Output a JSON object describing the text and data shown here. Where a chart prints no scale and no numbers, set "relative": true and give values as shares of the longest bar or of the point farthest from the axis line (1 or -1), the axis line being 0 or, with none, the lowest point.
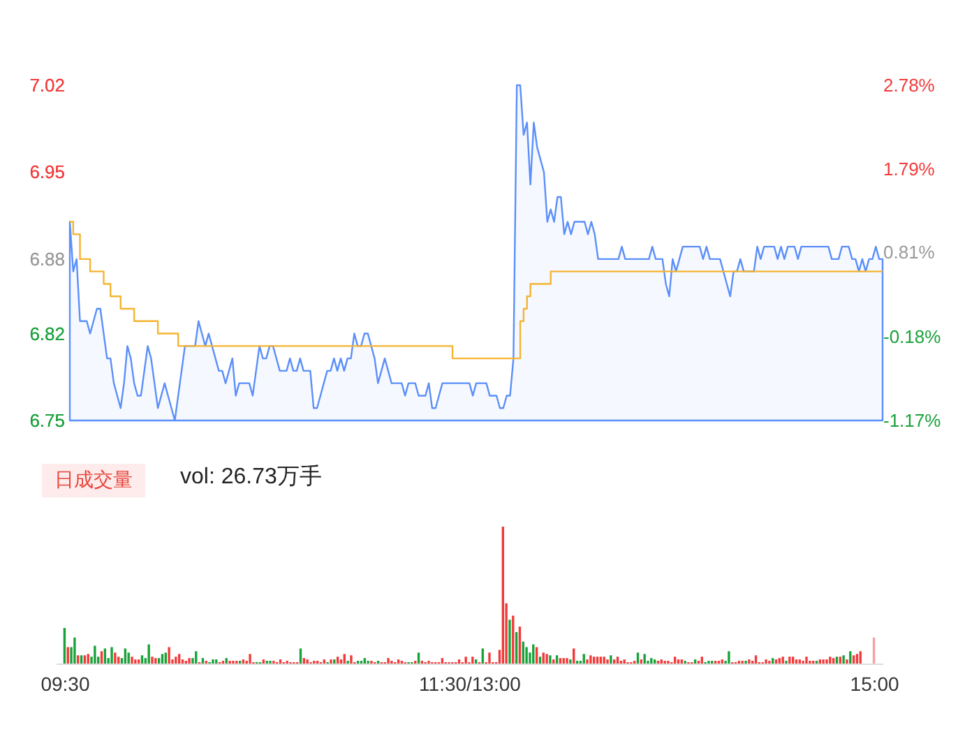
{
  "chart_data": [
    {
      "type": "line",
      "categories": [
        null,
        null,
        null,
        null,
        null,
        null,
        null,
        null,
        null,
        null,
        null,
        null,
        null,
        null,
        null,
        null,
        null,
        null,
        null,
        null,
        null,
        null,
        null,
        null,
        null,
        null,
        null,
        null,
        null,
        null,
        null,
        null,
        null,
        null,
        null,
        null,
        null,
        null,
        null,
        null,
        null,
        null,
        null,
        null,
        null,
        null,
        null,
        null,
        null,
        null,
        null,
        null,
        null,
        null,
        null,
        null,
        null,
        null,
        null,
        null,
        null,
        null,
        null,
        null,
        null,
        null,
        null,
        null,
        null,
        null,
        null,
        null,
        null,
        null,
        null,
        null,
        null,
        null,
        null,
        null,
        null,
        null,
        null,
        null,
        null,
        null,
        null,
        null,
        null,
        null,
        null,
        null,
        null,
        null,
        null,
        null,
        null,
        null,
        null,
        null,
        null,
        null,
        null,
        null,
        null,
        null,
        null,
        null,
        null,
        null,
        null,
        null,
        null,
        null,
        null,
        null,
        null,
        null,
        null,
        null,
        null,
        null,
        null,
        null,
        null,
        null,
        null,
        null,
        null,
        null,
        null,
        null,
        null,
        null,
        null,
        null,
        null,
        null,
        null,
        null,
        null,
        null,
        null,
        null,
        null,
        null,
        null,
        null,
        null,
        null,
        null,
        null,
        null,
        null,
        null,
        null,
        null,
        null,
        null,
        null,
        null,
        null,
        null,
        null,
        null,
        null,
        null,
        null,
        null,
        null,
        null,
        null,
        null,
        null,
        null,
        null,
        null,
        null,
        null,
        null,
        null,
        null,
        null,
        null,
        null,
        null,
        null,
        null,
        null,
        null,
        null,
        null,
        null,
        null,
        null,
        null,
        null,
        null,
        null,
        null,
        null,
        null,
        null,
        null,
        null,
        null,
        null,
        null,
        null,
        null,
        null,
        null,
        null,
        null,
        null,
        null,
        null,
        null,
        null,
        null,
        null,
        null,
        null,
        null,
        null,
        null,
        null,
        null,
        null,
        null,
        null,
        null,
        null,
        null,
        null,
        null,
        null,
        null,
        null,
        null,
        null
      ],
      "ylim": [
        6.75,
        7.02
      ],
      "yticks": [
        6.75,
        6.82,
        6.88,
        6.95,
        7.02
      ],
      "y2lim": [
        -1.17,
        2.78
      ],
      "y2ticks": [
        {
          "value": -1.17,
          "label": "-1.17%"
        },
        {
          "value": -0.18,
          "label": "-0.18%"
        },
        {
          "value": 0.81,
          "label": "0.81%"
        },
        {
          "value": 1.79,
          "label": "1.79%"
        },
        {
          "value": 2.78,
          "label": "2.78%"
        }
      ],
      "tick_labels": "y",
      "grid": false,
      "series": [
        {
          "type": "area",
          "color": "#5b8ff9",
          "values": [
            6.91,
            6.87,
            6.88,
            6.83,
            6.83,
            6.83,
            6.82,
            6.83,
            6.84,
            6.84,
            6.82,
            6.8,
            6.8,
            6.78,
            6.77,
            6.76,
            6.78,
            6.81,
            6.8,
            6.78,
            6.77,
            6.77,
            6.79,
            6.81,
            6.8,
            6.78,
            6.76,
            6.77,
            6.78,
            6.77,
            6.76,
            6.75,
            6.77,
            6.79,
            6.81,
            6.81,
            6.81,
            6.81,
            6.83,
            6.82,
            6.81,
            6.82,
            6.81,
            6.8,
            6.79,
            6.79,
            6.78,
            6.79,
            6.8,
            6.77,
            6.78,
            6.78,
            6.78,
            6.78,
            6.77,
            6.79,
            6.81,
            6.8,
            6.8,
            6.81,
            6.81,
            6.8,
            6.79,
            6.79,
            6.79,
            6.8,
            6.79,
            6.79,
            6.8,
            6.79,
            6.79,
            6.79,
            6.76,
            6.76,
            6.77,
            6.78,
            6.79,
            6.79,
            6.8,
            6.79,
            6.8,
            6.79,
            6.8,
            6.8,
            6.82,
            6.81,
            6.81,
            6.82,
            6.82,
            6.81,
            6.8,
            6.78,
            6.79,
            6.8,
            6.79,
            6.78,
            6.78,
            6.78,
            6.78,
            6.77,
            6.78,
            6.78,
            6.78,
            6.77,
            6.77,
            6.77,
            6.78,
            6.76,
            6.76,
            6.77,
            6.78,
            6.78,
            6.78,
            6.78,
            6.78,
            6.78,
            6.78,
            6.78,
            6.78,
            6.77,
            6.78,
            6.78,
            6.78,
            6.78,
            6.77,
            6.77,
            6.77,
            6.76,
            6.76,
            6.77,
            6.77,
            6.8,
            7.02,
            7.02,
            6.98,
            6.99,
            6.94,
            6.99,
            6.97,
            6.96,
            6.95,
            6.91,
            6.92,
            6.91,
            6.93,
            6.93,
            6.9,
            6.91,
            6.9,
            6.91,
            6.91,
            6.91,
            6.91,
            6.9,
            6.91,
            6.9,
            6.88,
            6.88,
            6.88,
            6.88,
            6.88,
            6.88,
            6.88,
            6.89,
            6.88,
            6.88,
            6.88,
            6.88,
            6.88,
            6.88,
            6.88,
            6.88,
            6.89,
            6.88,
            6.88,
            6.88,
            6.86,
            6.85,
            6.88,
            6.87,
            6.88,
            6.89,
            6.89,
            6.89,
            6.89,
            6.89,
            6.89,
            6.88,
            6.89,
            6.88,
            6.88,
            6.88,
            6.88,
            6.87,
            6.86,
            6.85,
            6.87,
            6.87,
            6.88,
            6.87,
            6.87,
            6.87,
            6.87,
            6.89,
            6.88,
            6.89,
            6.89,
            6.89,
            6.89,
            6.88,
            6.89,
            6.88,
            6.89,
            6.89,
            6.89,
            6.88,
            6.89,
            6.89,
            6.89,
            6.89,
            6.89,
            6.89,
            6.89,
            6.89,
            6.89,
            6.88,
            6.88,
            6.88,
            6.89,
            6.89,
            6.89,
            6.88,
            6.88,
            6.87,
            6.88,
            6.87,
            6.88,
            6.88,
            6.89,
            6.88,
            6.88
          ]
        },
        {
          "type": "step",
          "color": "#f5b430",
          "values": [
            6.91,
            6.9,
            6.9,
            6.88,
            6.88,
            6.88,
            6.87,
            6.87,
            6.87,
            6.87,
            6.86,
            6.86,
            6.85,
            6.85,
            6.85,
            6.84,
            6.84,
            6.84,
            6.84,
            6.83,
            6.83,
            6.83,
            6.83,
            6.83,
            6.83,
            6.83,
            6.82,
            6.82,
            6.82,
            6.82,
            6.82,
            6.82,
            6.81,
            6.81,
            6.81,
            6.81,
            6.81,
            6.81,
            6.81,
            6.81,
            6.81,
            6.81,
            6.81,
            6.81,
            6.81,
            6.81,
            6.81,
            6.81,
            6.81,
            6.81,
            6.81,
            6.81,
            6.81,
            6.81,
            6.81,
            6.81,
            6.81,
            6.81,
            6.81,
            6.81,
            6.81,
            6.81,
            6.81,
            6.81,
            6.81,
            6.81,
            6.81,
            6.81,
            6.81,
            6.81,
            6.81,
            6.81,
            6.81,
            6.81,
            6.81,
            6.81,
            6.81,
            6.81,
            6.81,
            6.81,
            6.81,
            6.81,
            6.81,
            6.81,
            6.81,
            6.81,
            6.81,
            6.81,
            6.81,
            6.81,
            6.81,
            6.81,
            6.81,
            6.81,
            6.81,
            6.81,
            6.81,
            6.81,
            6.81,
            6.81,
            6.81,
            6.81,
            6.81,
            6.81,
            6.81,
            6.81,
            6.81,
            6.81,
            6.81,
            6.81,
            6.81,
            6.81,
            6.81,
            6.8,
            6.8,
            6.8,
            6.8,
            6.8,
            6.8,
            6.8,
            6.8,
            6.8,
            6.8,
            6.8,
            6.8,
            6.8,
            6.8,
            6.8,
            6.8,
            6.8,
            6.8,
            6.8,
            6.8,
            6.83,
            6.84,
            6.85,
            6.86,
            6.86,
            6.86,
            6.86,
            6.86,
            6.86,
            6.87,
            6.87,
            6.87,
            6.87,
            6.87,
            6.87,
            6.87,
            6.87,
            6.87,
            6.87,
            6.87,
            6.87,
            6.87,
            6.87,
            6.87,
            6.87,
            6.87,
            6.87,
            6.87,
            6.87,
            6.87,
            6.87,
            6.87,
            6.87,
            6.87,
            6.87,
            6.87,
            6.87,
            6.87,
            6.87,
            6.87,
            6.87,
            6.87,
            6.87,
            6.87,
            6.87,
            6.87,
            6.87,
            6.87,
            6.87,
            6.87,
            6.87,
            6.87,
            6.87,
            6.87,
            6.87,
            6.87,
            6.87,
            6.87,
            6.87,
            6.87,
            6.87,
            6.87,
            6.87,
            6.87,
            6.87,
            6.87,
            6.87,
            6.87,
            6.87,
            6.87,
            6.87,
            6.87,
            6.87,
            6.87,
            6.87,
            6.87,
            6.87,
            6.87,
            6.87,
            6.87,
            6.87,
            6.87,
            6.87,
            6.87,
            6.87,
            6.87,
            6.87,
            6.87,
            6.87,
            6.87,
            6.87,
            6.87,
            6.87,
            6.87,
            6.87,
            6.87,
            6.87,
            6.87,
            6.87,
            6.87,
            6.87,
            6.87,
            6.87,
            6.87,
            6.87,
            6.87,
            6.87,
            6.87
          ]
        }
      ]
    },
    {
      "type": "bar",
      "relative": true,
      "grid": false,
      "categories": [
        "09:30",
        null,
        null,
        null,
        null,
        null,
        null,
        null,
        null,
        null,
        null,
        null,
        null,
        null,
        null,
        null,
        null,
        null,
        null,
        null,
        null,
        null,
        null,
        null,
        null,
        null,
        null,
        null,
        null,
        null,
        null,
        null,
        null,
        null,
        null,
        null,
        null,
        null,
        null,
        null,
        null,
        null,
        null,
        null,
        null,
        null,
        null,
        null,
        null,
        null,
        null,
        null,
        null,
        null,
        null,
        null,
        null,
        null,
        null,
        null,
        null,
        null,
        null,
        null,
        null,
        null,
        null,
        null,
        null,
        null,
        null,
        null,
        null,
        null,
        null,
        null,
        null,
        null,
        null,
        null,
        null,
        null,
        null,
        null,
        null,
        null,
        null,
        null,
        null,
        null,
        null,
        null,
        null,
        null,
        null,
        null,
        null,
        null,
        null,
        null,
        null,
        null,
        null,
        null,
        null,
        null,
        null,
        null,
        null,
        null,
        null,
        null,
        null,
        null,
        null,
        null,
        null,
        null,
        null,
        null,
        "11:30/13:00",
        null,
        null,
        null,
        null,
        null,
        null,
        null,
        null,
        null,
        null,
        null,
        null,
        null,
        null,
        null,
        null,
        null,
        null,
        null,
        null,
        null,
        null,
        null,
        null,
        null,
        null,
        null,
        null,
        null,
        null,
        null,
        null,
        null,
        null,
        null,
        null,
        null,
        null,
        null,
        null,
        null,
        null,
        null,
        null,
        null,
        null,
        null,
        null,
        null,
        null,
        null,
        null,
        null,
        null,
        null,
        null,
        null,
        null,
        null,
        null,
        null,
        null,
        null,
        null,
        null,
        null,
        null,
        null,
        null,
        null,
        null,
        null,
        null,
        null,
        null,
        null,
        null,
        null,
        null,
        null,
        null,
        null,
        null,
        null,
        null,
        null,
        null,
        null,
        null,
        null,
        null,
        null,
        null,
        null,
        null,
        null,
        null,
        null,
        null,
        null,
        null,
        null,
        null,
        null,
        null,
        null,
        null,
        null,
        null,
        null,
        null,
        null,
        null,
        null,
        null,
        null,
        null,
        null,
        null,
        "15:00"
      ],
      "annotations": [
        "日成交量",
        "vol: 26.73万手"
      ],
      "values": [
        0.26,
        0.12,
        0.12,
        0.19,
        0.06,
        0.06,
        0.06,
        0.07,
        0.05,
        0.13,
        0.05,
        0.09,
        0.11,
        0.04,
        0.12,
        0.08,
        0.05,
        0.04,
        0.11,
        0.08,
        0.05,
        0.03,
        0.03,
        0.06,
        0.04,
        0.14,
        0.05,
        0.04,
        0.04,
        0.07,
        0.08,
        0.12,
        0.03,
        0.05,
        0.07,
        0.03,
        0.02,
        0.04,
        0.04,
        0.09,
        0.01,
        0.04,
        0.02,
        0.01,
        0.03,
        0.03,
        0.01,
        0.02,
        0.04,
        0.02,
        0.02,
        0.02,
        0.02,
        0.03,
        0.02,
        0.07,
        0.01,
        0.01,
        0.01,
        0.03,
        0.02,
        0.02,
        0.02,
        0.01,
        0.03,
        0.01,
        0.02,
        0.01,
        0.01,
        0.01,
        0.11,
        0.04,
        0.03,
        0.01,
        0.02,
        0.02,
        0.01,
        0.03,
        0.01,
        0.03,
        0.03,
        0.05,
        0.03,
        0.07,
        0.02,
        0.06,
        0.01,
        0.02,
        0.02,
        0.04,
        0.02,
        0.02,
        0.01,
        0.02,
        0.01,
        0.01,
        0.04,
        0.02,
        0.01,
        0.03,
        0.02,
        0.01,
        0.01,
        0.01,
        0.02,
        0.08,
        0.02,
        0.01,
        0.02,
        0.01,
        0.01,
        0.01,
        0.04,
        0.01,
        0.01,
        0.01,
        0.01,
        0.03,
        0.01,
        0.05,
        0.01,
        0.05,
        0.03,
        0.01,
        0.11,
        0.01,
        0.08,
        0.01,
        0.01,
        0.1,
        1,
        0.44,
        0.32,
        0.35,
        0.23,
        0.27,
        0.16,
        0.12,
        0.08,
        0.14,
        0.12,
        0.05,
        0.08,
        0.07,
        0.06,
        0.03,
        0.06,
        0.04,
        0.04,
        0.04,
        0.03,
        0.11,
        0.02,
        0.02,
        0.07,
        0.03,
        0.06,
        0.05,
        0.05,
        0.05,
        0.05,
        0.03,
        0.06,
        0.03,
        0.05,
        0.02,
        0.03,
        0.01,
        0.01,
        0.02,
        0.08,
        0.03,
        0.07,
        0.02,
        0.04,
        0.03,
        0.02,
        0.03,
        0.02,
        0.02,
        0.01,
        0.05,
        0.03,
        0.03,
        0.02,
        0.01,
        0.01,
        0.03,
        0.02,
        0.05,
        0.01,
        0.02,
        0.02,
        0.02,
        0.02,
        0.03,
        0.02,
        0.09,
        0.01,
        0.01,
        0.02,
        0.02,
        0.02,
        0.03,
        0.02,
        0.06,
        0.01,
        0.01,
        0.03,
        0.02,
        0.04,
        0.03,
        0.04,
        0.05,
        0.02,
        0.05,
        0.05,
        0.03,
        0.03,
        0.02,
        0.05,
        0.02,
        0.02,
        0.02,
        0.03,
        0.03,
        0.03,
        0.05,
        0.04,
        0.05,
        0.05,
        0.06,
        0.03,
        0.09,
        0.06,
        0.07,
        0.09,
        0,
        0,
        0,
        0.19
      ],
      "colors": [
        "#1aa23a",
        "#f23a3a",
        "#1aa23a",
        "#1aa23a",
        "#f23a3a",
        "#1aa23a",
        "#f23a3a",
        "#f23a3a",
        "#1aa23a",
        "#1aa23a",
        "#1aa23a",
        "#f23a3a",
        "#1aa23a",
        "#1aa23a",
        "#1aa23a",
        "#f23a3a",
        "#f23a3a",
        "#1aa23a",
        "#1aa23a",
        "#1aa23a",
        "#f23a3a",
        "#f23a3a",
        "#f23a3a",
        "#1aa23a",
        "#1aa23a",
        "#1aa23a",
        "#f23a3a",
        "#f23a3a",
        "#1aa23a",
        "#1aa23a",
        "#1aa23a",
        "#f23a3a",
        "#f23a3a",
        "#f23a3a",
        "#f23a3a",
        "#f23a3a",
        "#f23a3a",
        "#f23a3a",
        "#1aa23a",
        "#1aa23a",
        "#f23a3a",
        "#1aa23a",
        "#f23a3a",
        "#1aa23a",
        "#1aa23a",
        "#1aa23a",
        "#f23a3a",
        "#f23a3a",
        "#1aa23a",
        "#f23a3a",
        "#f23a3a",
        "#f23a3a",
        "#1aa23a",
        "#f23a3a",
        "#f23a3a",
        "#f23a3a",
        "#f23a3a",
        "#1aa23a",
        "#1aa23a",
        "#f23a3a",
        "#1aa23a",
        "#1aa23a",
        "#f23a3a",
        "#f23a3a",
        "#f23a3a",
        "#f23a3a",
        "#f23a3a",
        "#f23a3a",
        "#f23a3a",
        "#f23a3a",
        "#1aa23a",
        "#f23a3a",
        "#f23a3a",
        "#f23a3a",
        "#f23a3a",
        "#f23a3a",
        "#f23a3a",
        "#f23a3a",
        "#1aa23a",
        "#f23a3a",
        "#1aa23a",
        "#f23a3a",
        "#f23a3a",
        "#f23a3a",
        "#1aa23a",
        "#f23a3a",
        "#f23a3a",
        "#1aa23a",
        "#1aa23a",
        "#1aa23a",
        "#1aa23a",
        "#f23a3a",
        "#f23a3a",
        "#1aa23a",
        "#f23a3a",
        "#f23a3a",
        "#f23a3a",
        "#f23a3a",
        "#f23a3a",
        "#f23a3a",
        "#f23a3a",
        "#f23a3a",
        "#1aa23a",
        "#1aa23a",
        "#f23a3a",
        "#1aa23a",
        "#f23a3a",
        "#f23a3a",
        "#f23a3a",
        "#f23a3a",
        "#f23a3a",
        "#f23a3a",
        "#f23a3a",
        "#f23a3a",
        "#f23a3a",
        "#f23a3a",
        "#f23a3a",
        "#f23a3a",
        "#f23a3a",
        "#f23a3a",
        "#f23a3a",
        "#f23a3a",
        "#1aa23a",
        "#f23a3a",
        "#1aa23a",
        "#f23a3a",
        "#f23a3a",
        "#f23a3a",
        "#f23a3a",
        "#f23a3a",
        "#f23a3a",
        "#f23a3a",
        "#1aa23a",
        "#f23a3a",
        "#1aa23a",
        "#f23a3a",
        "#1aa23a",
        "#1aa23a",
        "#1aa23a",
        "#1aa23a",
        "#f23a3a",
        "#1aa23a",
        "#f23a3a",
        "#f23a3a",
        "#1aa23a",
        "#f23a3a",
        "#1aa23a",
        "#f23a3a",
        "#f23a3a",
        "#f23a3a",
        "#1aa23a",
        "#f23a3a",
        "#1aa23a",
        "#1aa23a",
        "#1aa23a",
        "#f23a3a",
        "#f23a3a",
        "#f23a3a",
        "#f23a3a",
        "#f23a3a",
        "#f23a3a",
        "#f23a3a",
        "#1aa23a",
        "#f23a3a",
        "#f23a3a",
        "#f23a3a",
        "#f23a3a",
        "#f23a3a",
        "#f23a3a",
        "#f23a3a",
        "#1aa23a",
        "#f23a3a",
        "#1aa23a",
        "#1aa23a",
        "#1aa23a",
        "#1aa23a",
        "#f23a3a",
        "#f23a3a",
        "#f23a3a",
        "#f23a3a",
        "#f23a3a",
        "#f23a3a",
        "#f23a3a",
        "#f23a3a",
        "#1aa23a",
        "#f23a3a",
        "#f23a3a",
        "#1aa23a",
        "#f23a3a",
        "#f23a3a",
        "#1aa23a",
        "#1aa23a",
        "#1aa23a",
        "#f23a3a",
        "#f23a3a",
        "#f23a3a",
        "#1aa23a",
        "#1aa23a",
        "#f23a3a",
        "#f23a3a",
        "#f23a3a",
        "#f23a3a",
        "#1aa23a",
        "#f23a3a",
        "#f23a3a",
        "#f23a3a",
        "#f23a3a",
        "#f23a3a",
        "#f23a3a",
        "#f23a3a",
        "#1aa23a",
        "#f23a3a",
        "#f23a3a",
        "#f23a3a",
        "#1aa23a",
        "#f23a3a",
        "#f23a3a",
        "#f23a3a",
        "#f23a3a",
        "#f23a3a",
        "#f23a3a",
        "#f23a3a",
        "#f23a3a",
        "#1aa23a",
        "#f23a3a",
        "#f23a3a",
        "#f23a3a",
        "#f23a3a",
        "#f23a3a",
        "#1aa23a",
        "#f23a3a",
        "#1aa23a",
        "#f23a3a",
        "#1aa23a",
        "#f23a3a",
        "#f23a3a",
        "#f23a3a",
        "#f23a3a",
        "#f23a3a",
        "#f23a3a",
        "#f8a0a0"
      ]
    }
  ]
}
